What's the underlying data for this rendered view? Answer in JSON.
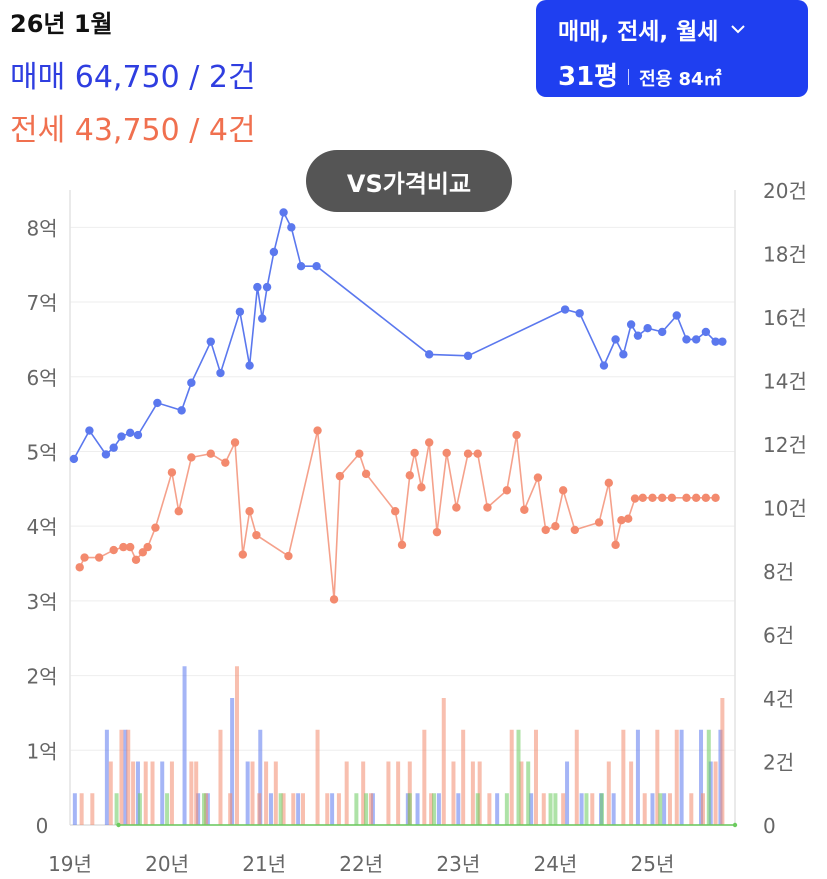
{
  "header": {
    "period": "26년 1월",
    "sale_summary": "매매 64,750 / 2건",
    "jeonse_summary": "전세 43,750 / 4건"
  },
  "filter": {
    "types": "매매, 전세, 월세",
    "pyeong": "31평",
    "area": "전용 84㎡",
    "icon": "chevron-down-icon"
  },
  "compare_button": "VS가격비교",
  "colors": {
    "sale": "#5b78ee",
    "jeonse": "#f38a6e",
    "monthly": "#6ccb5f",
    "accent": "#1f3ff0"
  },
  "chart_data": {
    "type": "line",
    "x_range": [
      2019.0,
      2025.85
    ],
    "x_ticks": [
      {
        "value": 2019,
        "label": "19년"
      },
      {
        "value": 2020,
        "label": "20년"
      },
      {
        "value": 2021,
        "label": "21년"
      },
      {
        "value": 2022,
        "label": "22년"
      },
      {
        "value": 2023,
        "label": "23년"
      },
      {
        "value": 2024,
        "label": "24년"
      },
      {
        "value": 2025,
        "label": "25년"
      }
    ],
    "y_left": {
      "ylim": [
        0,
        8.5
      ],
      "unit": "억",
      "ticks": [
        {
          "value": 0,
          "label": "0"
        },
        {
          "value": 1,
          "label": "1억"
        },
        {
          "value": 2,
          "label": "2억"
        },
        {
          "value": 3,
          "label": "3억"
        },
        {
          "value": 4,
          "label": "4억"
        },
        {
          "value": 5,
          "label": "5억"
        },
        {
          "value": 6,
          "label": "6억"
        },
        {
          "value": 7,
          "label": "7억"
        },
        {
          "value": 8,
          "label": "8억"
        }
      ]
    },
    "y_right": {
      "ylim": [
        0,
        20
      ],
      "unit": "건",
      "ticks": [
        {
          "value": 0,
          "label": "0"
        },
        {
          "value": 2,
          "label": "2건"
        },
        {
          "value": 4,
          "label": "4건"
        },
        {
          "value": 6,
          "label": "6건"
        },
        {
          "value": 8,
          "label": "8건"
        },
        {
          "value": 10,
          "label": "10건"
        },
        {
          "value": 12,
          "label": "12건"
        },
        {
          "value": 14,
          "label": "14건"
        },
        {
          "value": 16,
          "label": "16건"
        },
        {
          "value": 18,
          "label": "18건"
        },
        {
          "value": 20,
          "label": "20건"
        }
      ]
    },
    "grid": true,
    "series": [
      {
        "name": "매매",
        "type": "line",
        "axis": "left",
        "x": [
          2019.04,
          2019.2,
          2019.37,
          2019.45,
          2019.53,
          2019.62,
          2019.7,
          2019.9,
          2020.15,
          2020.25,
          2020.45,
          2020.55,
          2020.75,
          2020.85,
          2020.93,
          2020.98,
          2021.03,
          2021.1,
          2021.2,
          2021.28,
          2021.38,
          2021.54,
          2022.7,
          2023.1,
          2024.1,
          2024.25,
          2024.5,
          2024.62,
          2024.7,
          2024.78,
          2024.85,
          2024.95,
          2025.1,
          2025.25,
          2025.35,
          2025.45,
          2025.55,
          2025.65,
          2025.72
        ],
        "y": [
          4.9,
          5.28,
          4.96,
          5.05,
          5.2,
          5.25,
          5.22,
          5.65,
          5.55,
          5.92,
          6.47,
          6.05,
          6.87,
          6.15,
          7.2,
          6.78,
          7.2,
          7.67,
          8.2,
          8.0,
          7.48,
          7.48,
          6.3,
          6.28,
          6.9,
          6.85,
          6.15,
          6.5,
          6.3,
          6.7,
          6.55,
          6.65,
          6.6,
          6.82,
          6.5,
          6.5,
          6.6,
          6.47,
          6.47
        ]
      },
      {
        "name": "전세",
        "type": "line",
        "axis": "left",
        "x": [
          2019.1,
          2019.15,
          2019.3,
          2019.45,
          2019.55,
          2019.62,
          2019.68,
          2019.75,
          2019.8,
          2019.88,
          2020.05,
          2020.12,
          2020.25,
          2020.45,
          2020.6,
          2020.7,
          2020.78,
          2020.85,
          2020.92,
          2021.25,
          2021.55,
          2021.72,
          2021.78,
          2021.98,
          2022.05,
          2022.35,
          2022.42,
          2022.5,
          2022.55,
          2022.62,
          2022.7,
          2022.78,
          2022.88,
          2022.98,
          2023.1,
          2023.2,
          2023.3,
          2023.5,
          2023.6,
          2023.68,
          2023.82,
          2023.9,
          2024.0,
          2024.08,
          2024.2,
          2024.45,
          2024.55,
          2024.62,
          2024.68,
          2024.75,
          2024.82,
          2024.9,
          2025.0,
          2025.1,
          2025.2,
          2025.35,
          2025.45,
          2025.55,
          2025.65
        ],
        "y": [
          3.45,
          3.58,
          3.58,
          3.68,
          3.72,
          3.72,
          3.55,
          3.65,
          3.72,
          3.98,
          4.72,
          4.2,
          4.92,
          4.97,
          4.85,
          5.12,
          3.62,
          4.2,
          3.88,
          3.6,
          5.28,
          3.02,
          4.67,
          4.97,
          4.7,
          4.2,
          3.75,
          4.68,
          4.98,
          4.52,
          5.12,
          3.92,
          4.98,
          4.25,
          4.97,
          4.97,
          4.25,
          4.48,
          5.22,
          4.22,
          4.65,
          3.95,
          4.0,
          4.48,
          3.95,
          4.05,
          4.58,
          3.75,
          4.08,
          4.1,
          4.37,
          4.38,
          4.38,
          4.38,
          4.38,
          4.38,
          4.38,
          4.38,
          4.38
        ]
      },
      {
        "name": "월세",
        "type": "line",
        "axis": "left",
        "x": [
          2019.5,
          2025.85
        ],
        "y": [
          0.0,
          0.0
        ]
      }
    ],
    "volume": [
      {
        "name": "매매",
        "axis": "right",
        "x": [
          2019.05,
          2019.38,
          2019.57,
          2019.7,
          2019.95,
          2020.18,
          2020.32,
          2020.42,
          2020.67,
          2020.83,
          2020.96,
          2021.07,
          2021.35,
          2021.7,
          2022.12,
          2022.48,
          2022.58,
          2022.8,
          2023.0,
          2023.4,
          2023.75,
          2024.12,
          2024.27,
          2024.47,
          2024.6,
          2024.85,
          2025.0,
          2025.12,
          2025.3,
          2025.5,
          2025.6,
          2025.7
        ],
        "values": [
          1,
          3,
          3,
          2,
          2,
          5,
          1,
          1,
          4,
          2,
          3,
          1,
          1,
          1,
          1,
          1,
          1,
          1,
          1,
          1,
          1,
          2,
          1,
          1,
          1,
          3,
          1,
          1,
          3,
          3,
          2,
          3
        ]
      },
      {
        "name": "전세",
        "axis": "right",
        "x": [
          2019.12,
          2019.23,
          2019.42,
          2019.53,
          2019.6,
          2019.65,
          2019.78,
          2019.85,
          2020.05,
          2020.25,
          2020.3,
          2020.4,
          2020.55,
          2020.65,
          2020.72,
          2020.88,
          2020.95,
          2021.02,
          2021.12,
          2021.2,
          2021.3,
          2021.4,
          2021.55,
          2021.65,
          2021.77,
          2021.85,
          2022.02,
          2022.1,
          2022.28,
          2022.38,
          2022.5,
          2022.65,
          2022.72,
          2022.85,
          2022.95,
          2023.05,
          2023.15,
          2023.22,
          2023.32,
          2023.55,
          2023.65,
          2023.8,
          2023.88,
          2024.08,
          2024.22,
          2024.38,
          2024.55,
          2024.7,
          2024.78,
          2024.92,
          2025.05,
          2025.18,
          2025.25,
          2025.4,
          2025.52,
          2025.65,
          2025.72
        ],
        "values": [
          1,
          1,
          2,
          3,
          3,
          2,
          2,
          2,
          2,
          2,
          2,
          1,
          3,
          1,
          5,
          2,
          1,
          2,
          2,
          1,
          1,
          1,
          3,
          1,
          1,
          2,
          2,
          1,
          2,
          2,
          2,
          3,
          1,
          4,
          2,
          3,
          2,
          2,
          1,
          3,
          2,
          3,
          1,
          1,
          3,
          1,
          2,
          3,
          2,
          1,
          3,
          1,
          3,
          1,
          1,
          2,
          4
        ]
      },
      {
        "name": "월세",
        "axis": "right",
        "x": [
          2019.48,
          2019.72,
          2020.0,
          2020.38,
          2021.17,
          2021.95,
          2022.05,
          2022.5,
          2022.75,
          2023.2,
          2023.5,
          2023.62,
          2023.72,
          2023.95,
          2024.0,
          2024.32,
          2024.48,
          2025.08,
          2025.58
        ],
        "values": [
          1,
          1,
          1,
          1,
          1,
          1,
          1,
          1,
          1,
          1,
          1,
          3,
          2,
          1,
          1,
          1,
          1,
          1,
          3
        ]
      }
    ]
  }
}
